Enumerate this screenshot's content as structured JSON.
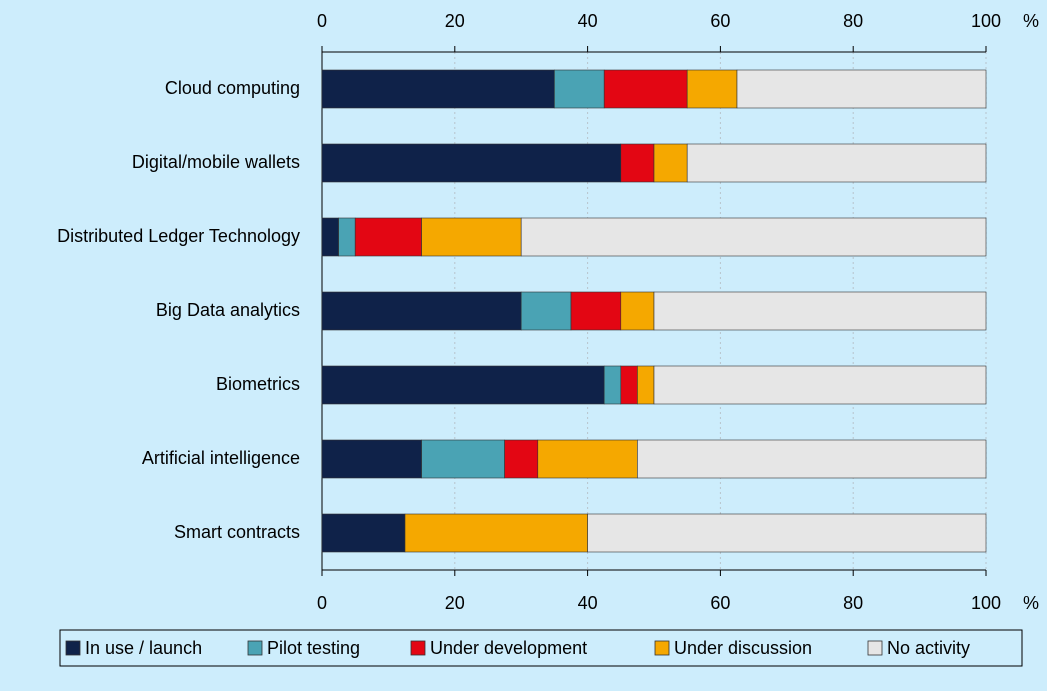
{
  "chart_data": {
    "type": "stacked_bar_horizontal",
    "x_unit": "%",
    "categories": [
      "Cloud computing",
      "Digital/mobile wallets",
      "Distributed Ledger Technology",
      "Big Data analytics",
      "Biometrics",
      "Artificial intelligence",
      "Smart contracts"
    ],
    "series": [
      {
        "name": "In use / launch",
        "color": "#0f2249",
        "values": [
          35,
          45,
          2.5,
          30,
          42.5,
          15,
          12.5
        ]
      },
      {
        "name": "Pilot testing",
        "color": "#4aa3b4",
        "values": [
          7.5,
          0,
          2.5,
          7.5,
          2.5,
          12.5,
          0
        ]
      },
      {
        "name": "Under development",
        "color": "#e30613",
        "values": [
          12.5,
          5,
          10,
          7.5,
          2.5,
          5,
          0
        ]
      },
      {
        "name": "Under discussion",
        "color": "#f5a800",
        "values": [
          7.5,
          5,
          15,
          5,
          2.5,
          15,
          27.5
        ]
      },
      {
        "name": "No activity",
        "color": "#e6e6e6",
        "values": [
          37.5,
          45,
          70,
          50,
          50,
          52.5,
          60
        ]
      }
    ],
    "xlim": [
      0,
      100
    ],
    "xticks": [
      0,
      20,
      40,
      60,
      80,
      100
    ],
    "grid": true
  }
}
